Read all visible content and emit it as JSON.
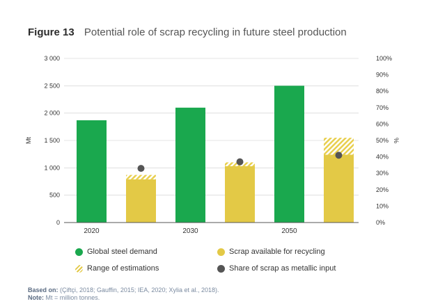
{
  "figure": {
    "label": "Figure 13",
    "title": "Potential role of scrap recycling in future steel production"
  },
  "colors": {
    "demand": "#1aa84e",
    "scrap": "#e3c946",
    "hatch": "#f4e28a",
    "share": "#555555",
    "grid": "#cccccc",
    "axis": "#555555"
  },
  "chart_data": {
    "type": "bar",
    "title": "Potential role of scrap recycling in future steel production",
    "categories": [
      "2020",
      "2030",
      "2050"
    ],
    "ylabel": "Mt",
    "y2label": "%",
    "ylim": [
      0,
      3000
    ],
    "y2lim": [
      0,
      100
    ],
    "yticks": [
      "0",
      "500",
      "1 000",
      "1 500",
      "2 000",
      "2 500",
      "3 000"
    ],
    "ytick_values": [
      0,
      500,
      1000,
      1500,
      2000,
      2500,
      3000
    ],
    "y2ticks": [
      "0%",
      "10%",
      "20%",
      "30%",
      "40%",
      "50%",
      "60%",
      "70%",
      "80%",
      "90%",
      "100%"
    ],
    "y2tick_values": [
      0,
      10,
      20,
      30,
      40,
      50,
      60,
      70,
      80,
      90,
      100
    ],
    "grid": true,
    "series": [
      {
        "name": "Global steel demand",
        "values": [
          1870,
          2100,
          2500
        ]
      },
      {
        "name": "Scrap available for recycling",
        "values": [
          790,
          1030,
          1240
        ]
      },
      {
        "name": "Range of estimations",
        "low": [
          790,
          1030,
          1240
        ],
        "high": [
          870,
          1100,
          1550
        ]
      },
      {
        "name": "Share of scrap as metallic input",
        "values": [
          33,
          37,
          41
        ],
        "axis": "secondary"
      }
    ]
  },
  "legend": [
    {
      "label": "Global steel demand",
      "icon": "green-dot"
    },
    {
      "label": "Scrap available for recycling",
      "icon": "yellow-dot"
    },
    {
      "label": "Range of estimations",
      "icon": "hatched-dot"
    },
    {
      "label": "Share of scrap as metallic input",
      "icon": "grey-dot"
    }
  ],
  "notes": {
    "based_on_label": "Based on:",
    "based_on_text": " (Çiftçi, 2018; Gauffin, 2015; IEA, 2020; Xylia et al., 2018).",
    "note_label": "Note:",
    "note_text": " Mt = million tonnes."
  }
}
